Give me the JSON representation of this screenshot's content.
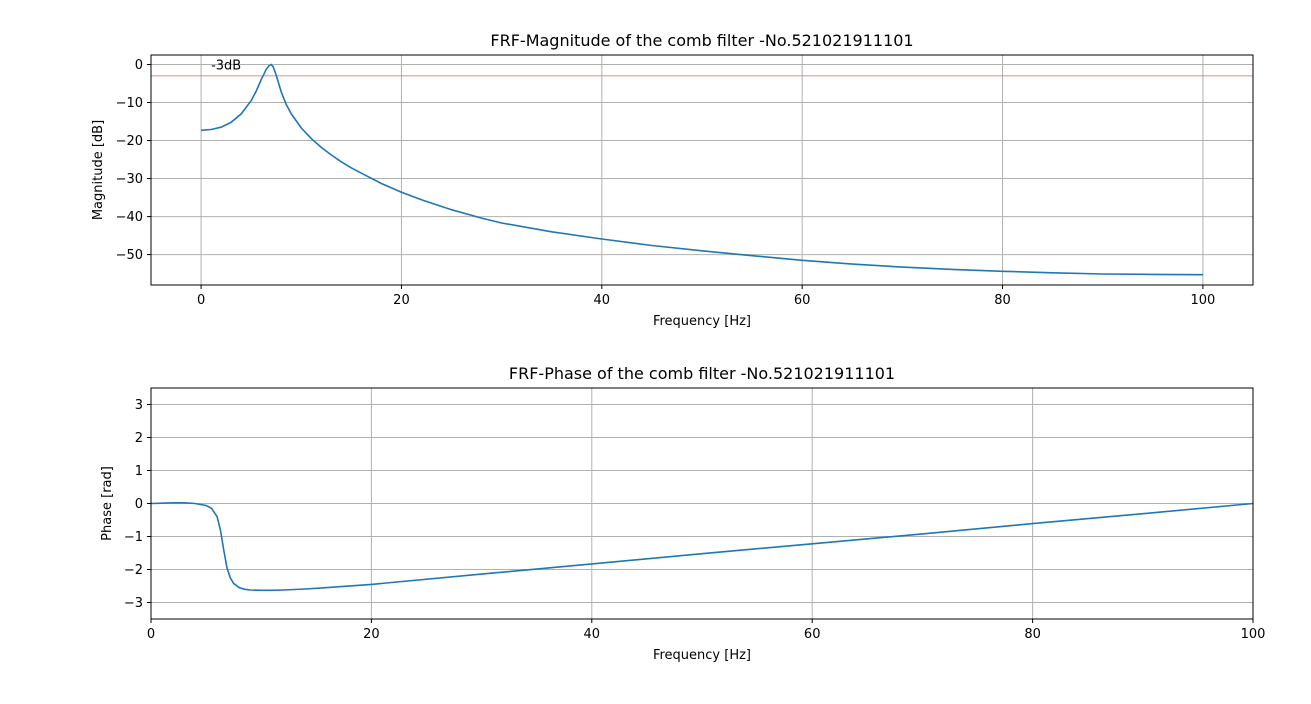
{
  "chart_data": [
    {
      "type": "line",
      "title": "FRF-Magnitude of the comb filter -No.521021911101",
      "xlabel": "Frequency [Hz]",
      "ylabel": "Magnitude [dB]",
      "xlim": [
        -5,
        105
      ],
      "ylim": [
        -58,
        2.5
      ],
      "xticks": [
        0,
        20,
        40,
        60,
        80,
        100
      ],
      "yticks": [
        0,
        -10,
        -20,
        -30,
        -40,
        -50
      ],
      "xtick_labels": [
        "0",
        "20",
        "40",
        "60",
        "80",
        "100"
      ],
      "ytick_labels": [
        "0",
        "−10",
        "−20",
        "−30",
        "−40",
        "−50"
      ],
      "grid": true,
      "reference_line": {
        "y": -3,
        "color": "#e06060"
      },
      "annotation": {
        "text": "-3dB",
        "x": 1,
        "y": -1.3
      },
      "series": [
        {
          "color": "#1f77b4",
          "x": [
            0,
            1,
            2,
            3,
            4,
            5,
            5.5,
            6,
            6.5,
            6.8,
            7,
            7.2,
            7.5,
            8,
            8.5,
            9,
            10,
            11,
            12,
            13,
            14,
            15,
            16,
            18,
            20,
            22,
            25,
            28,
            30,
            35,
            40,
            45,
            50,
            55,
            60,
            65,
            70,
            75,
            80,
            85,
            90,
            95,
            100
          ],
          "y": [
            -17.3,
            -17.1,
            -16.5,
            -15.2,
            -13.0,
            -9.5,
            -7.0,
            -4.0,
            -1.3,
            -0.3,
            0,
            -0.6,
            -2.8,
            -7.2,
            -10.5,
            -13.0,
            -16.7,
            -19.5,
            -21.8,
            -23.8,
            -25.6,
            -27.2,
            -28.6,
            -31.3,
            -33.6,
            -35.6,
            -38.2,
            -40.4,
            -41.7,
            -44.0,
            -45.9,
            -47.6,
            -49.0,
            -50.3,
            -51.5,
            -52.5,
            -53.3,
            -53.9,
            -54.4,
            -54.8,
            -55.1,
            -55.2,
            -55.3
          ]
        }
      ]
    },
    {
      "type": "line",
      "title": "FRF-Phase of the comb filter -No.521021911101",
      "xlabel": "Frequency [Hz]",
      "ylabel": "Phase [rad]",
      "xlim": [
        0,
        100
      ],
      "ylim": [
        -3.5,
        3.5
      ],
      "xticks": [
        0,
        20,
        40,
        60,
        80,
        100
      ],
      "yticks": [
        3,
        2,
        1,
        0,
        -1,
        -2,
        -3
      ],
      "xtick_labels": [
        "0",
        "20",
        "40",
        "60",
        "80",
        "100"
      ],
      "ytick_labels": [
        "3",
        "2",
        "1",
        "0",
        "−1",
        "−2",
        "−3"
      ],
      "grid": true,
      "series": [
        {
          "color": "#1f77b4",
          "x": [
            0,
            1,
            2,
            3,
            4,
            5,
            5.5,
            6,
            6.3,
            6.6,
            6.9,
            7.2,
            7.5,
            8,
            8.5,
            9,
            10,
            11,
            12,
            14,
            16,
            20,
            30,
            40,
            50,
            60,
            70,
            80,
            90,
            100
          ],
          "y": [
            0,
            0.01,
            0.02,
            0.02,
            0.0,
            -0.06,
            -0.15,
            -0.4,
            -0.8,
            -1.4,
            -1.95,
            -2.25,
            -2.42,
            -2.55,
            -2.6,
            -2.62,
            -2.63,
            -2.63,
            -2.62,
            -2.59,
            -2.55,
            -2.45,
            -2.14,
            -1.83,
            -1.52,
            -1.22,
            -0.92,
            -0.61,
            -0.31,
            0
          ]
        }
      ]
    }
  ]
}
